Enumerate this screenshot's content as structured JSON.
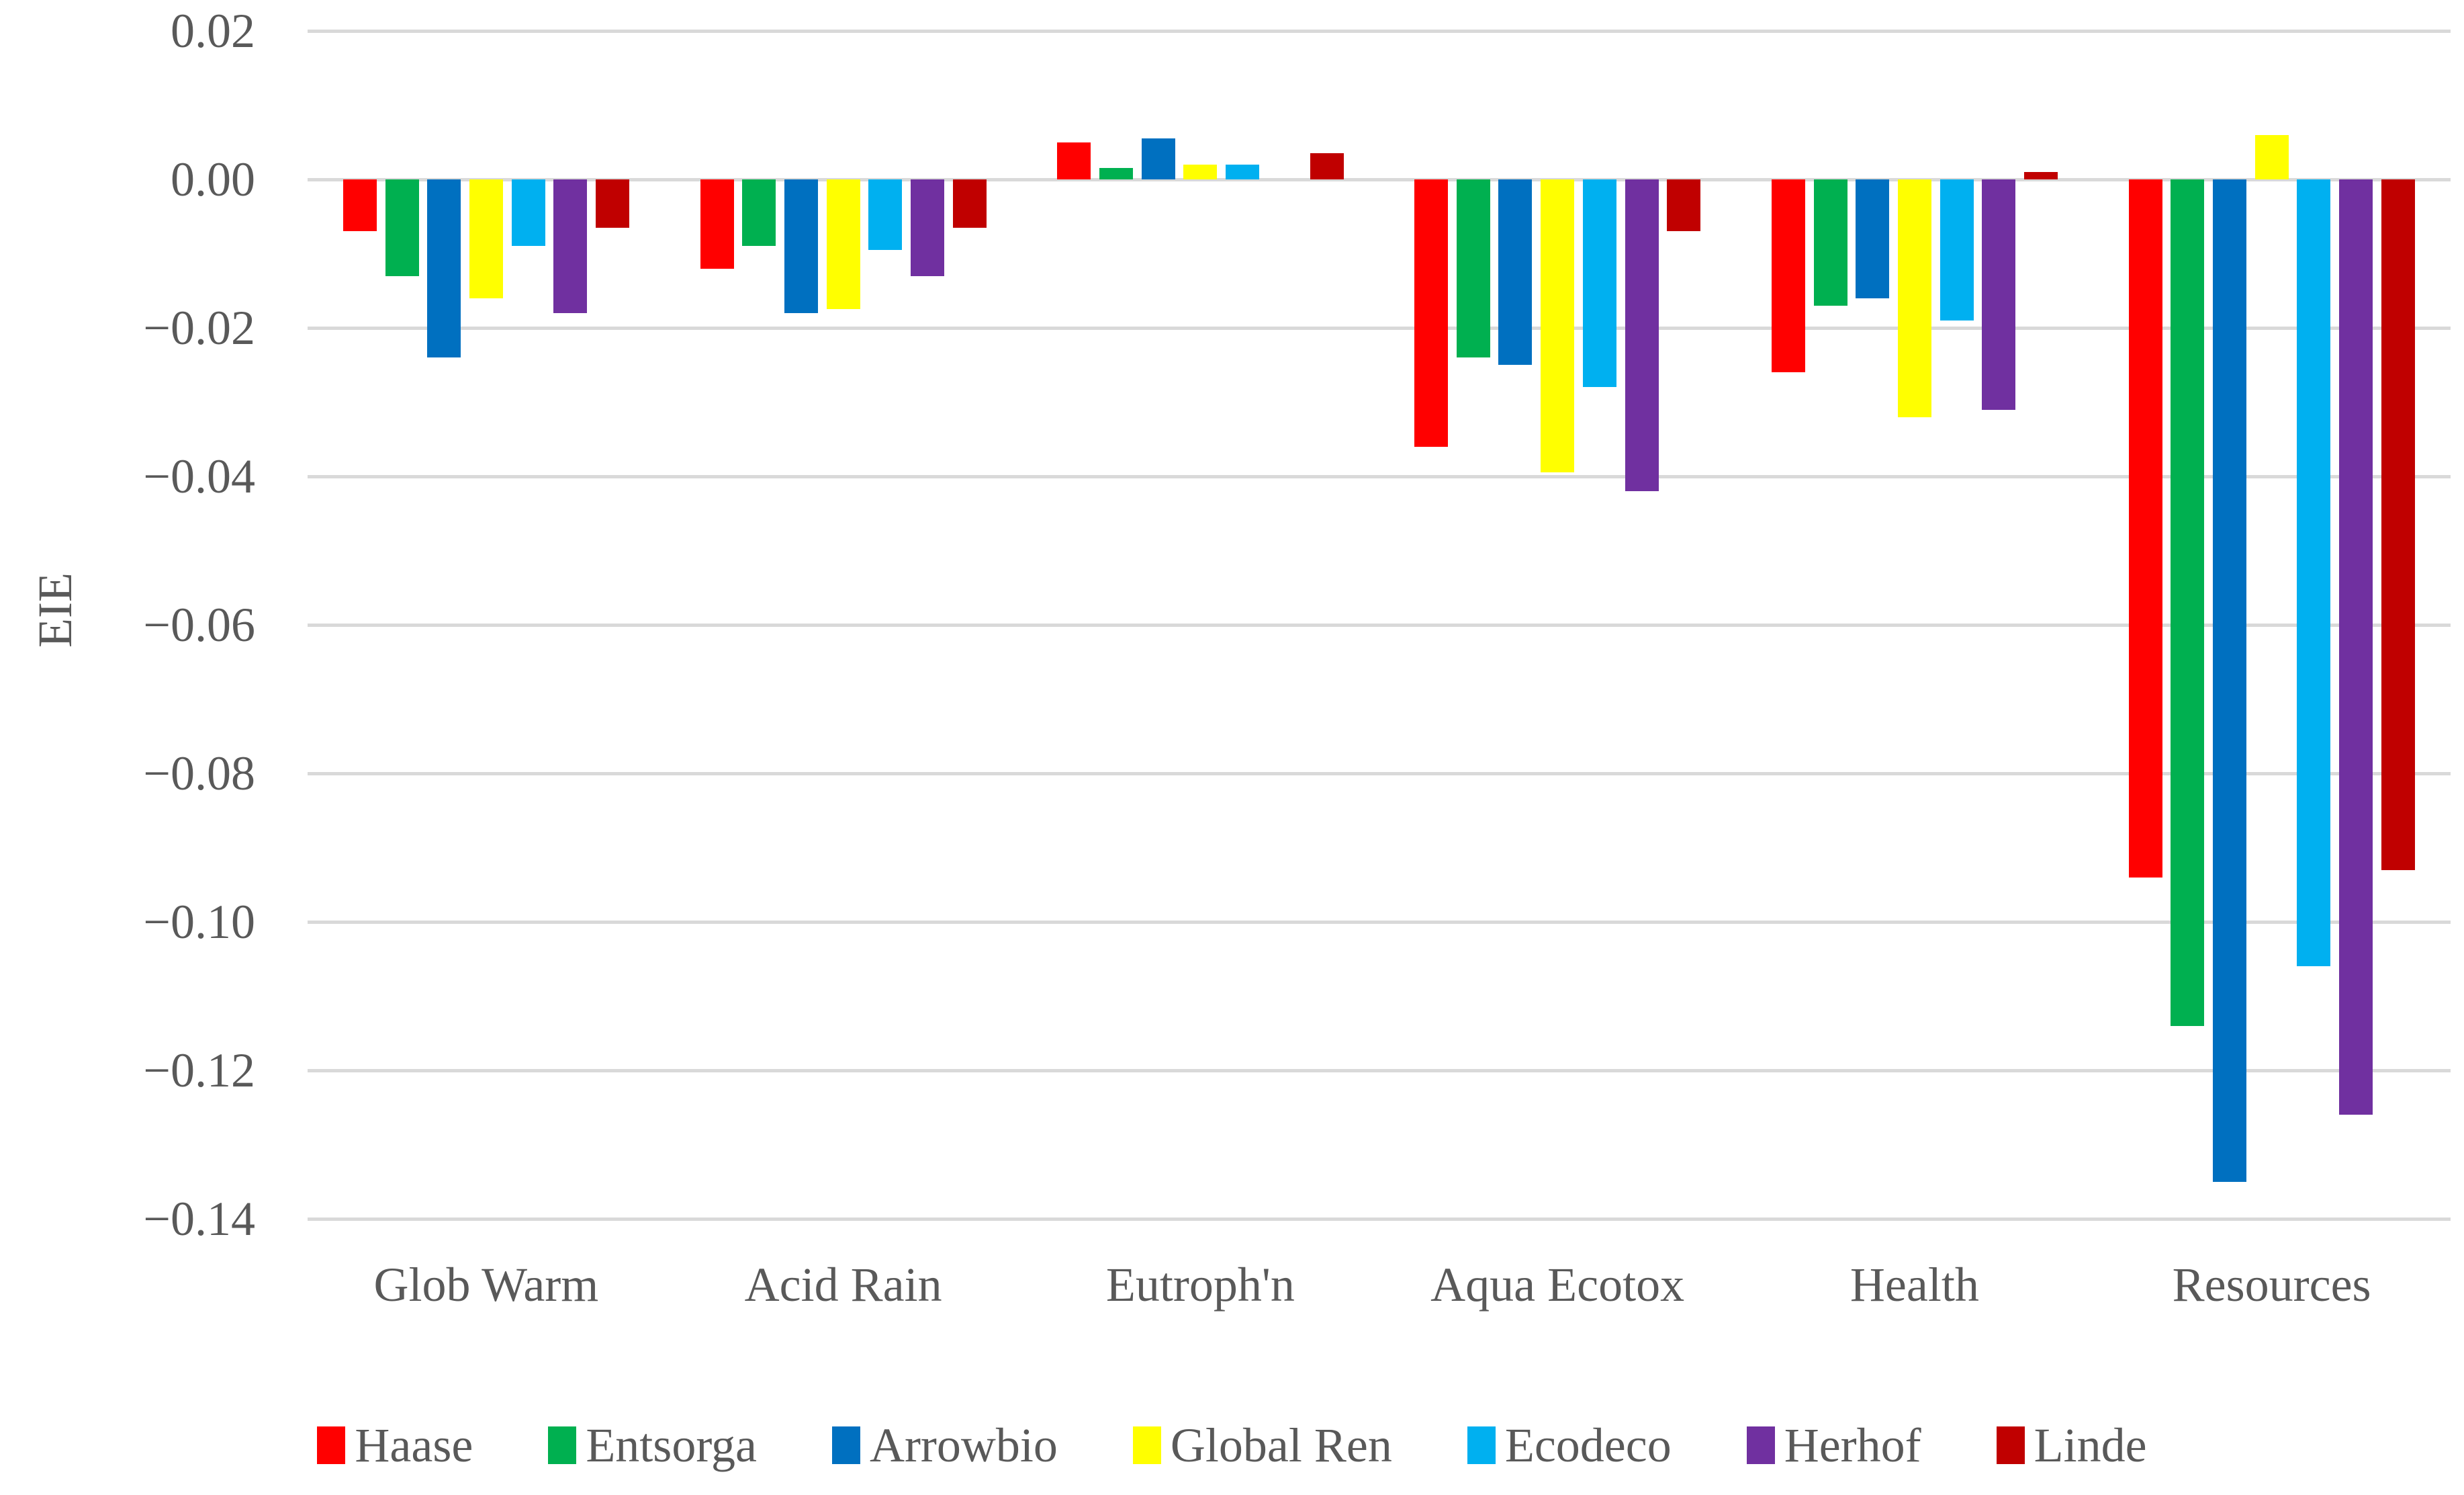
{
  "chart_data": {
    "type": "bar",
    "title": "",
    "ylabel": "EIE",
    "xlabel": "",
    "categories": [
      "Glob Warm",
      "Acid Rain",
      "Eutroph'n",
      "Aqua Ecotox",
      "Health",
      "Resources"
    ],
    "series": [
      {
        "name": "Haase",
        "color": "#FF0000",
        "values": [
          -0.007,
          -0.012,
          0.005,
          -0.036,
          -0.026,
          -0.094
        ]
      },
      {
        "name": "Entsorga",
        "color": "#00B050",
        "values": [
          -0.013,
          -0.009,
          0.0015,
          -0.024,
          -0.017,
          -0.114
        ]
      },
      {
        "name": "Arrowbio",
        "color": "#0070C0",
        "values": [
          -0.024,
          -0.018,
          0.0055,
          -0.025,
          -0.016,
          -0.135
        ]
      },
      {
        "name": "Global Ren",
        "color": "#FFFF00",
        "values": [
          -0.016,
          -0.0175,
          0.002,
          -0.0395,
          -0.032,
          0.006
        ]
      },
      {
        "name": "Ecodeco",
        "color": "#00B0F0",
        "values": [
          -0.009,
          -0.0095,
          0.002,
          -0.028,
          -0.019,
          -0.106
        ]
      },
      {
        "name": "Herhof",
        "color": "#7030A0",
        "values": [
          -0.018,
          -0.013,
          0.0,
          -0.042,
          -0.031,
          -0.126
        ]
      },
      {
        "name": "Linde",
        "color": "#C00000",
        "values": [
          -0.0065,
          -0.0065,
          0.0035,
          -0.007,
          0.001,
          -0.093
        ]
      }
    ],
    "ylim": [
      -0.14,
      0.02
    ],
    "ytick_step": 0.02,
    "ytick_labels": [
      "0.02",
      "0.00",
      "−0.02",
      "−0.04",
      "−0.06",
      "−0.08",
      "−0.10",
      "−0.12",
      "−0.14"
    ],
    "grid": "horizontal",
    "gridline_color": "#D9D9D9",
    "text_color": "#595959",
    "legend_position": "bottom",
    "legend_entries": [
      "Haase",
      "Entsorga",
      "Arrowbio",
      "Global Ren",
      "Ecodeco",
      "Herhof",
      "Linde"
    ]
  }
}
